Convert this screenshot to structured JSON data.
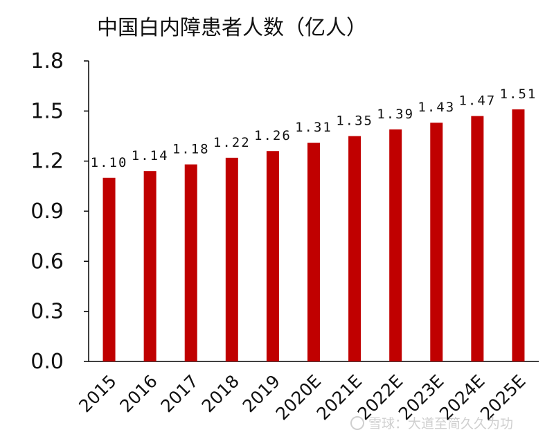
{
  "chart_data": {
    "type": "bar",
    "title": "中国白内障患者人数（亿人）",
    "categories": [
      "2015",
      "2016",
      "2017",
      "2018",
      "2019",
      "2020E",
      "2021E",
      "2022E",
      "2023E",
      "2024E",
      "2025E"
    ],
    "values": [
      1.1,
      1.14,
      1.18,
      1.22,
      1.26,
      1.31,
      1.35,
      1.39,
      1.43,
      1.47,
      1.51
    ],
    "value_labels": [
      "1.10",
      "1.14",
      "1.18",
      "1.22",
      "1.26",
      "1.31",
      "1.35",
      "1.39",
      "1.43",
      "1.47",
      "1.51"
    ],
    "yticks": [
      "0.0",
      "0.3",
      "0.6",
      "0.9",
      "1.2",
      "1.5",
      "1.8"
    ],
    "ylim": [
      0,
      1.8
    ],
    "xlabel": "",
    "ylabel": "",
    "grid": false,
    "legend": "none",
    "bar_color": "#c00000"
  },
  "watermark": {
    "text": "雪球：大道至简久久为功"
  }
}
